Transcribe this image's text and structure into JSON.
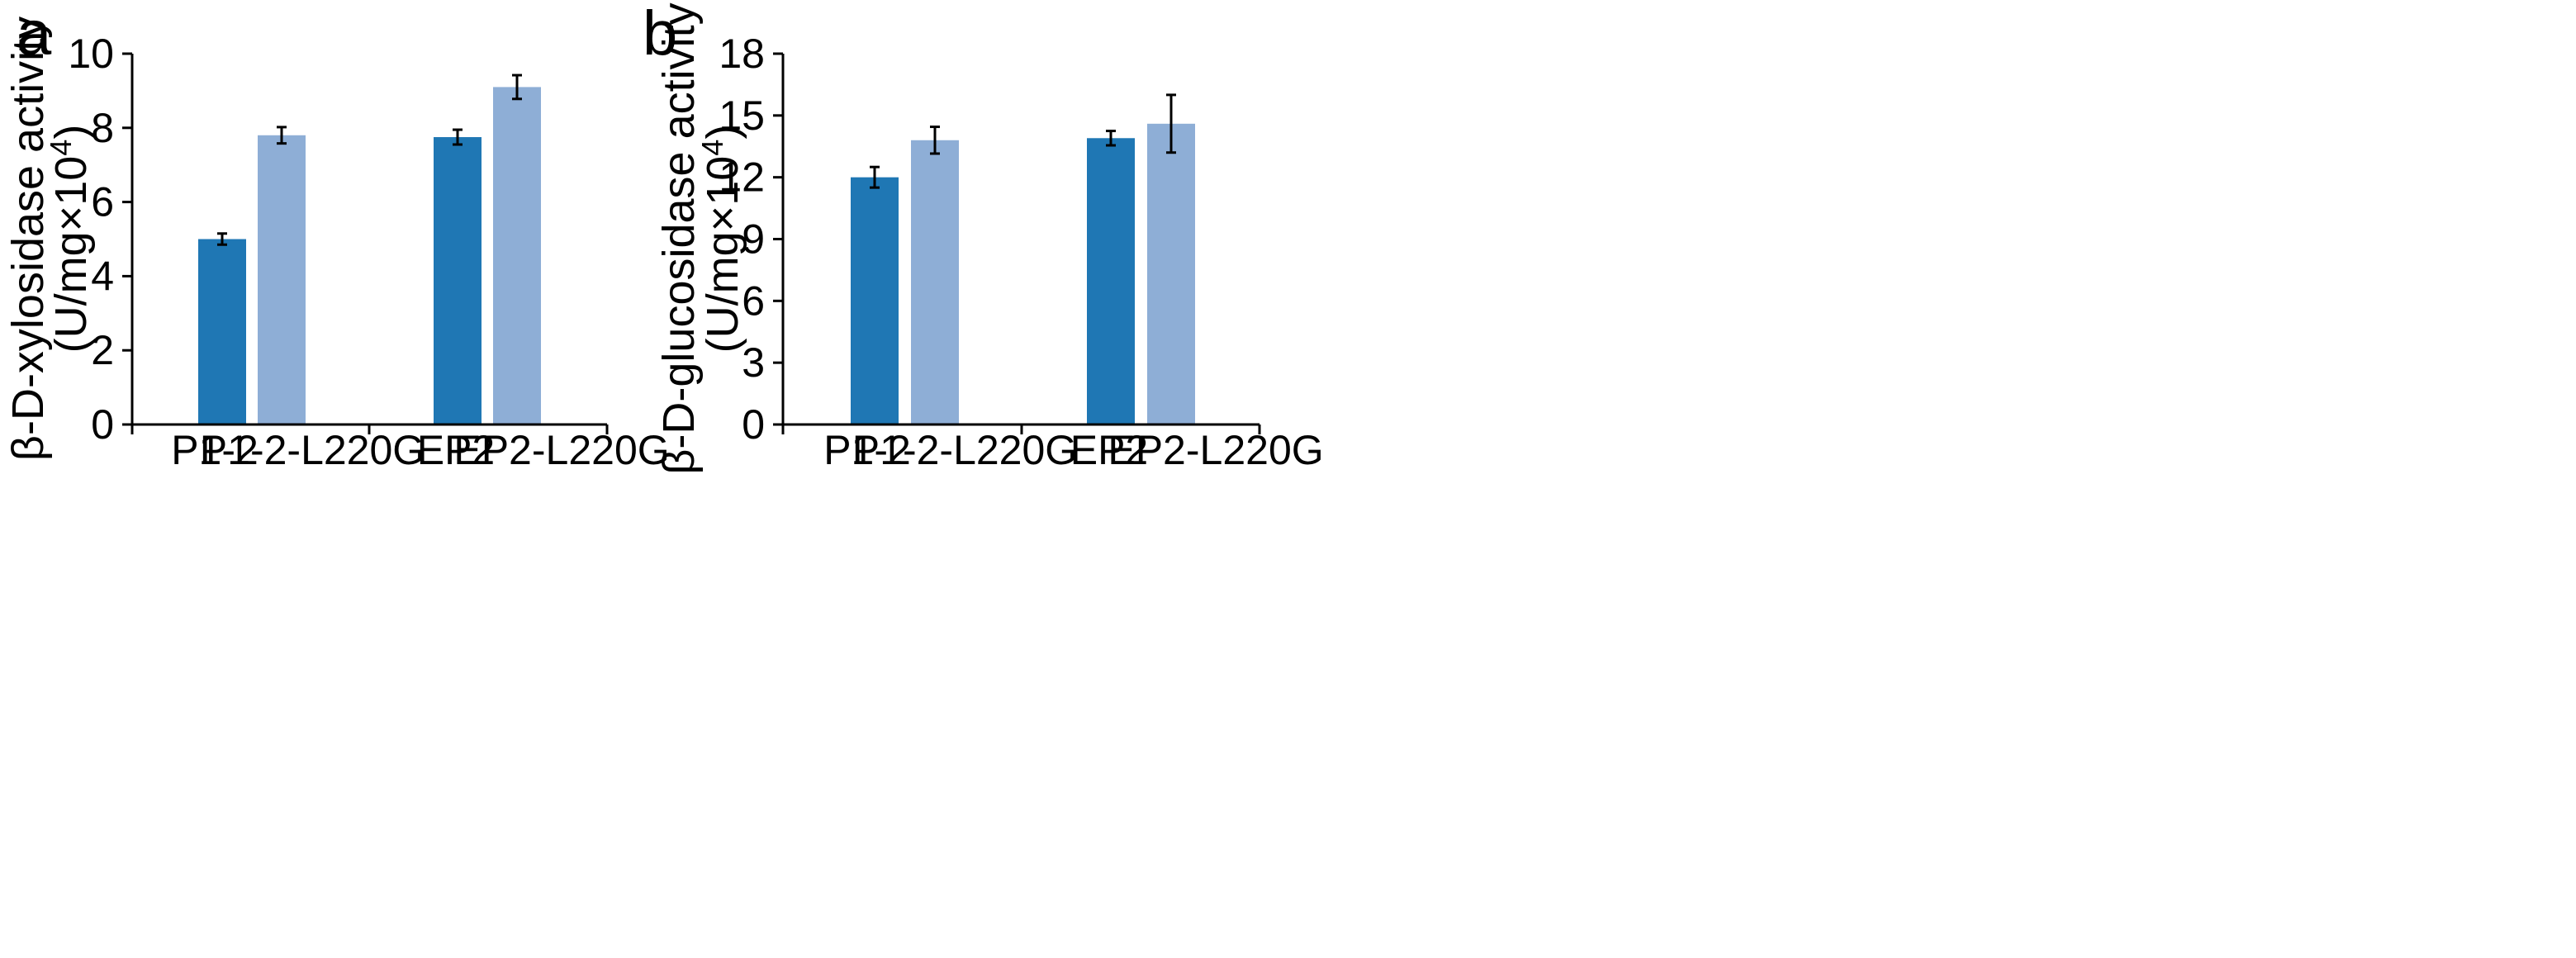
{
  "colors": {
    "dark": "#1f77b4",
    "light": "#8eaed6",
    "axis": "#000000"
  },
  "chart_data": [
    {
      "panel_label": "a",
      "type": "bar",
      "categories": [
        "P1-2",
        "P1-2-L220G",
        "EP2",
        "EP2-L220G"
      ],
      "groups": [
        [
          "P1-2",
          "P1-2-L220G"
        ],
        [
          "EP2",
          "EP2-L220G"
        ]
      ],
      "values": [
        5.0,
        7.8,
        7.75,
        9.1
      ],
      "errors": [
        0.15,
        0.22,
        0.2,
        0.32
      ],
      "bar_colors": [
        "dark",
        "light",
        "dark",
        "light"
      ],
      "ylabel_line1": "β-D-xylosidase activity",
      "ylabel_line2": "(U/mg×10",
      "ylabel_sup": "4",
      "ylabel_close": ")",
      "ylim": [
        0,
        10
      ],
      "yticks": [
        0,
        2,
        4,
        6,
        8,
        10
      ]
    },
    {
      "panel_label": "b",
      "type": "bar",
      "categories": [
        "P1-2",
        "P1-2-L220G",
        "EP2",
        "EP2-L220G"
      ],
      "groups": [
        [
          "P1-2",
          "P1-2-L220G"
        ],
        [
          "EP2",
          "EP2-L220G"
        ]
      ],
      "values": [
        12.0,
        13.8,
        13.9,
        14.6
      ],
      "errors": [
        0.5,
        0.65,
        0.35,
        1.4
      ],
      "bar_colors": [
        "dark",
        "light",
        "dark",
        "light"
      ],
      "ylabel_line1": "β-D-glucosidase activity",
      "ylabel_line2": "(U/mg×10",
      "ylabel_sup": "4",
      "ylabel_close": ")",
      "ylim": [
        0,
        18
      ],
      "yticks": [
        0,
        3,
        6,
        9,
        12,
        15,
        18
      ]
    }
  ]
}
